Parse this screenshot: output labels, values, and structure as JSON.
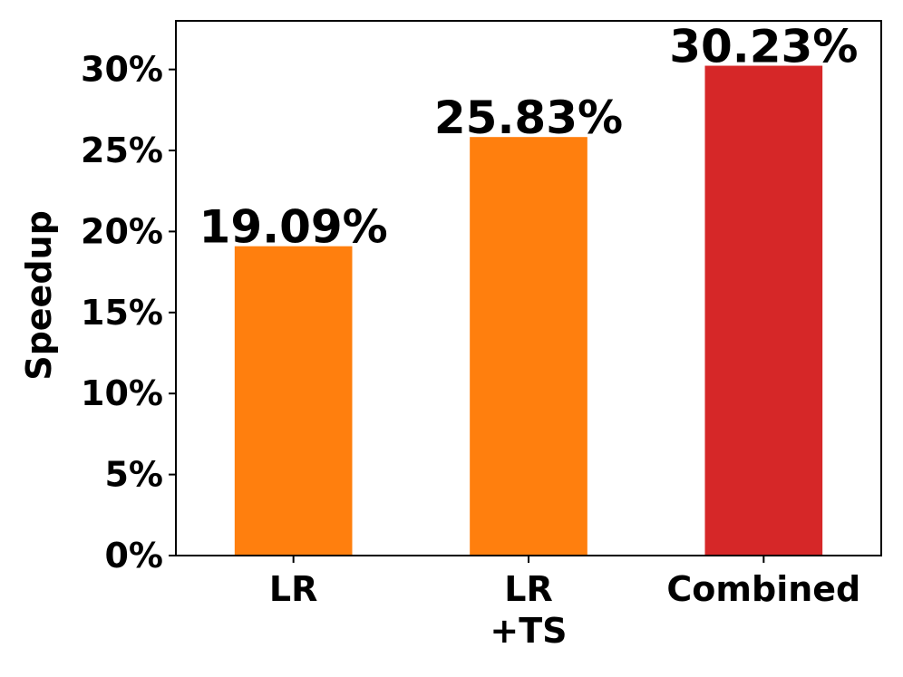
{
  "chart_data": {
    "type": "bar",
    "categories": [
      [
        "LR"
      ],
      [
        "LR",
        "+TS"
      ],
      [
        "Combined"
      ]
    ],
    "values": [
      19.09,
      25.83,
      30.23
    ],
    "data_labels": [
      "19.09%",
      "25.83%",
      "30.23%"
    ],
    "bar_colors": [
      "#ff7f0e",
      "#ff7f0e",
      "#d62728"
    ],
    "title": "",
    "xlabel": "",
    "ylabel": "Speedup",
    "ylim": [
      0,
      33
    ],
    "yticks": [
      0,
      5,
      10,
      15,
      20,
      25,
      30
    ],
    "ytick_labels": [
      "0%",
      "5%",
      "10%",
      "15%",
      "20%",
      "25%",
      "30%"
    ],
    "grid": false,
    "legend": false
  }
}
